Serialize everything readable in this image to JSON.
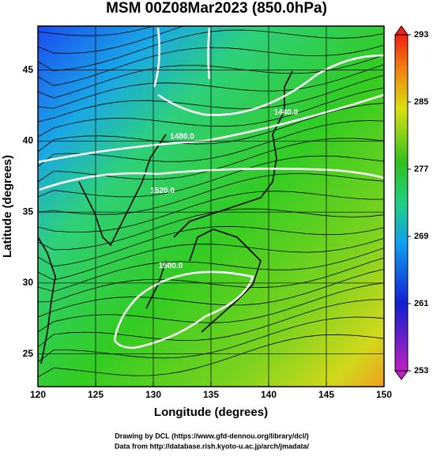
{
  "chart_data": {
    "type": "map",
    "title": "MSM 00Z08Mar2023 (850.0hPa)",
    "xlabel": "Longitude (degrees)",
    "ylabel": "Latitude  (degrees)",
    "xlim": [
      120,
      150
    ],
    "ylim": [
      22.7,
      48.1
    ],
    "xticks": [
      120,
      125,
      130,
      135,
      140,
      145,
      150
    ],
    "yticks": [
      25,
      30,
      35,
      40,
      45
    ],
    "colorbar": {
      "lim": [
        253,
        293
      ],
      "ticks": [
        253,
        261,
        269,
        277,
        285,
        293
      ]
    },
    "contour_labels": [
      {
        "text": "1440.0",
        "x": 141.5,
        "y": 42.0
      },
      {
        "text": "1480.0",
        "x": 132.5,
        "y": 40.3
      },
      {
        "text": "1520.0",
        "x": 130.8,
        "y": 36.5
      },
      {
        "text": "1500.0",
        "x": 131.5,
        "y": 31.2
      }
    ],
    "footer": [
      "Drawing by DCL (https://www.gfd-dennou.org/library/dcl/)",
      "Data from http://database.rish.kyoto-u.ac.jp/arch/jmadata/"
    ]
  }
}
